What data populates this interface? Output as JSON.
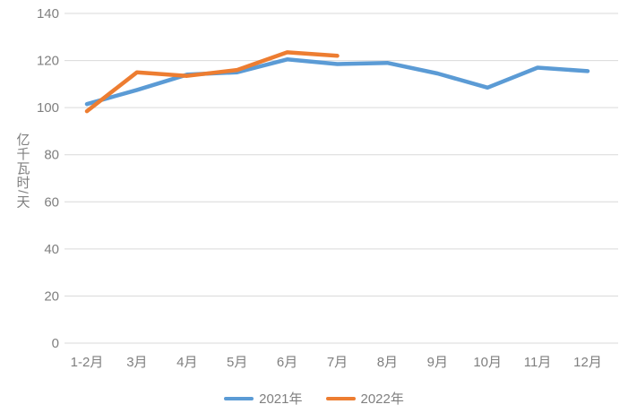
{
  "chart_data": {
    "type": "line",
    "title": "",
    "xlabel": "",
    "ylabel": "亿千瓦时/天",
    "categories": [
      "1-2月",
      "3月",
      "4月",
      "5月",
      "6月",
      "7月",
      "8月",
      "9月",
      "10月",
      "11月",
      "12月"
    ],
    "series": [
      {
        "name": "2021年",
        "color": "#5B9BD5",
        "values": [
          101.5,
          107.5,
          114,
          115,
          120.5,
          118.5,
          119,
          114.5,
          108.5,
          117,
          115.5
        ]
      },
      {
        "name": "2022年",
        "color": "#ED7D31",
        "values": [
          98.5,
          115,
          113.5,
          116,
          123.5,
          122
        ]
      }
    ],
    "ylim": [
      0,
      140
    ],
    "ytick_step": 20,
    "yticks": [
      0,
      20,
      40,
      60,
      80,
      100,
      120,
      140
    ],
    "grid": true,
    "legend_position": "bottom",
    "colors": {
      "grid": "#D9D9D9",
      "axis_text": "#7F7F7F",
      "background": "#FFFFFF"
    }
  }
}
